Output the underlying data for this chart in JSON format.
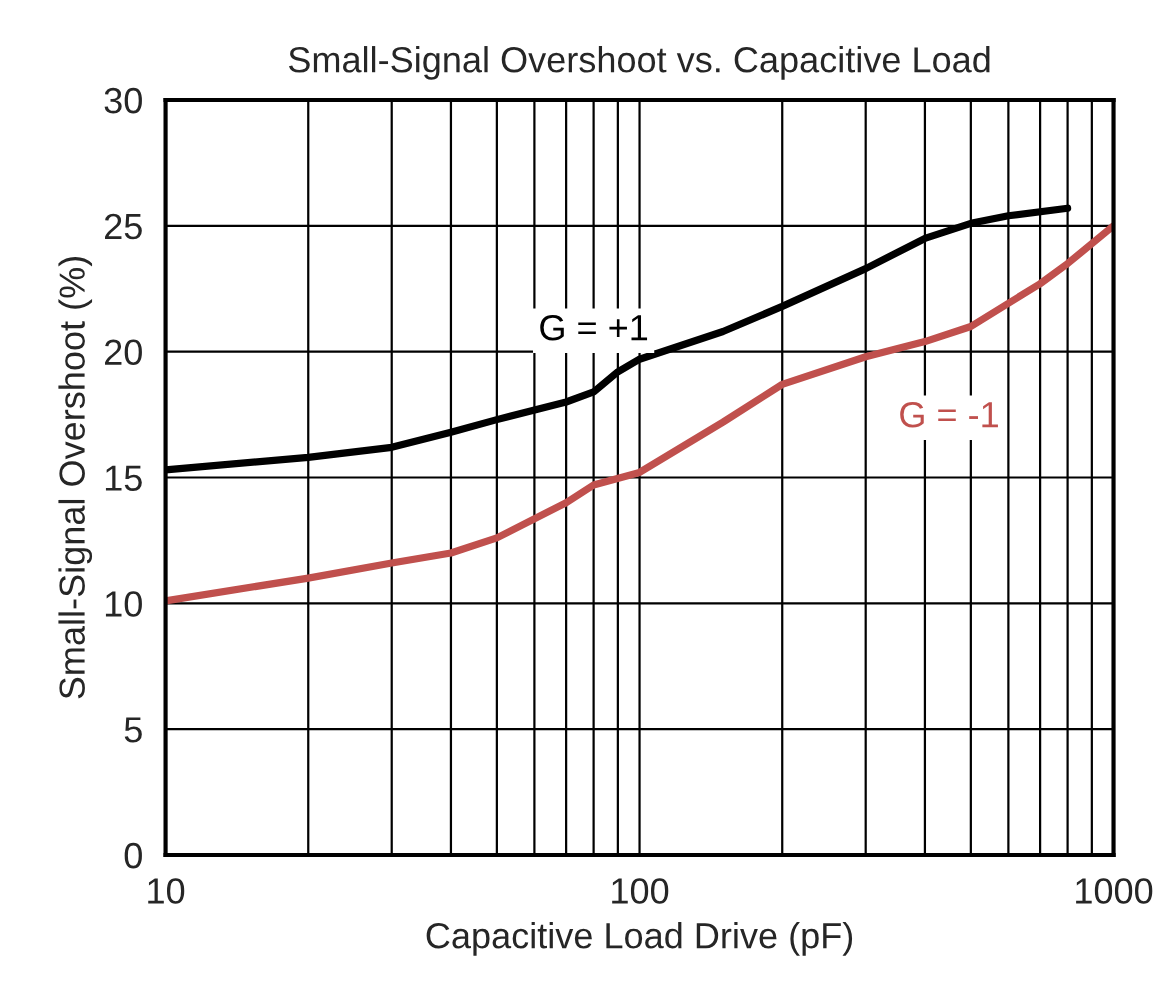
{
  "chart_data": {
    "type": "line",
    "title": "Small-Signal Overshoot vs. Capacitive Load",
    "xlabel": "Capacitive Load Drive (pF)",
    "ylabel": "Small-Signal Overshoot (%)",
    "log": "x",
    "grid": true,
    "legend": false,
    "marker": "none",
    "line_style": "solid",
    "xlim": [
      10,
      1000
    ],
    "xticks": [
      10,
      100,
      1000
    ],
    "ylim": [
      0,
      30
    ],
    "yticks": [
      0,
      5,
      10,
      15,
      20,
      25,
      30
    ],
    "series": [
      {
        "name": "G = +1",
        "color": "#000000",
        "x": [
          10,
          20,
          30,
          40,
          50,
          70,
          80,
          90,
          100,
          150,
          200,
          300,
          400,
          500,
          600,
          800
        ],
        "values": [
          15.3,
          15.8,
          16.2,
          16.8,
          17.3,
          18.0,
          18.4,
          19.2,
          19.7,
          20.8,
          21.8,
          23.3,
          24.5,
          25.1,
          25.4,
          25.7
        ]
      },
      {
        "name": "G = -1",
        "color": "#c0504d",
        "x": [
          10,
          20,
          30,
          40,
          50,
          70,
          80,
          100,
          150,
          200,
          300,
          400,
          500,
          700,
          800,
          1000
        ],
        "values": [
          10.1,
          11.0,
          11.6,
          12.0,
          12.6,
          14.0,
          14.7,
          15.2,
          17.2,
          18.7,
          19.8,
          20.4,
          21.0,
          22.7,
          23.5,
          25.0
        ]
      }
    ]
  }
}
